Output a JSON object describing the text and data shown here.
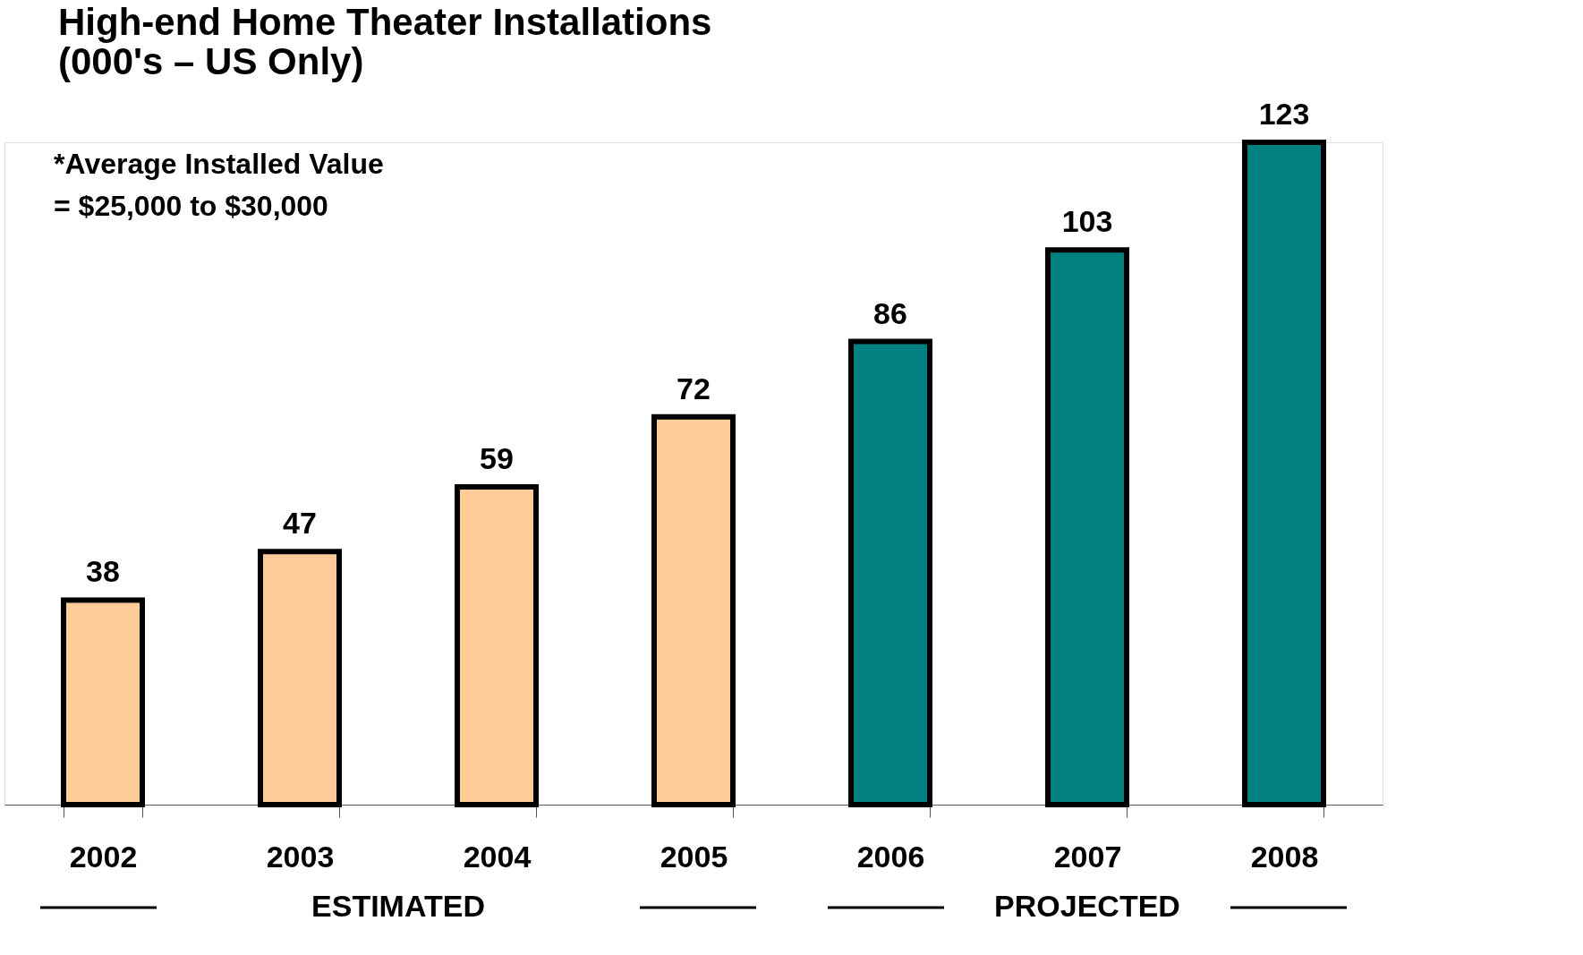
{
  "chart_data": {
    "type": "bar",
    "title": "High-end Home Theater Installations\n(000's – US Only)",
    "categories": [
      "2002",
      "2003",
      "2004",
      "2005",
      "2006",
      "2007",
      "2008"
    ],
    "values": [
      38,
      47,
      59,
      72,
      86,
      103,
      123
    ],
    "colors": [
      "#ffcc99",
      "#ffcc99",
      "#ffcc99",
      "#ffcc99",
      "#008080",
      "#008080",
      "#008080"
    ],
    "data_labels": true,
    "grid": false,
    "legend": false,
    "annotations": [
      "*Average Installed Value\n   = $25,000 to $30,000",
      "ESTIMATED",
      "PROJECTED"
    ]
  }
}
